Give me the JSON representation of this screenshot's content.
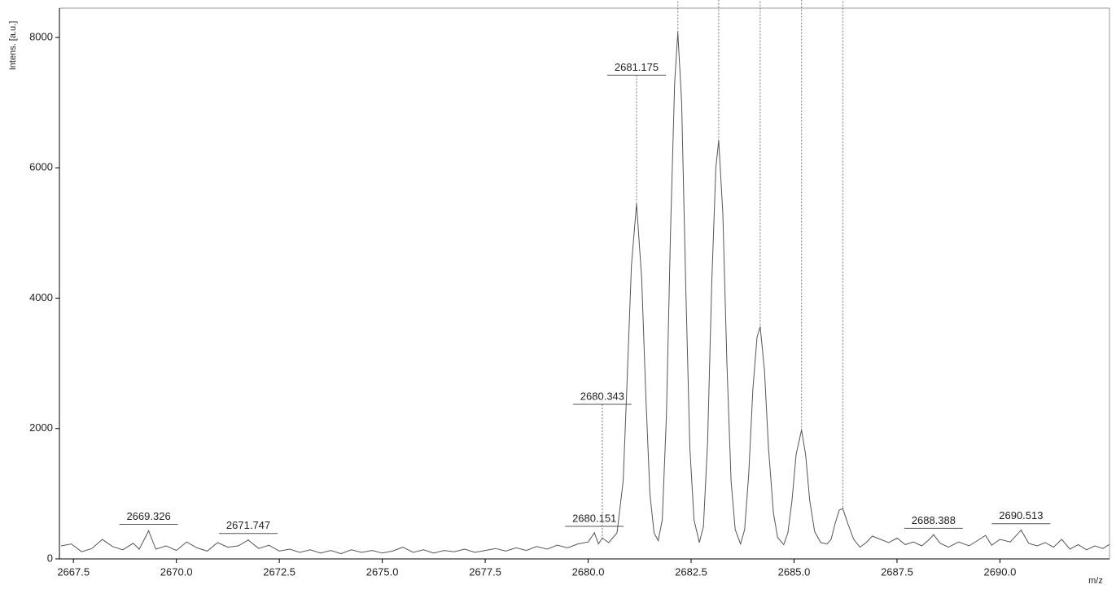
{
  "chart_data": {
    "type": "line",
    "xlabel": "m/z",
    "ylabel": "Intens. [a.u.]",
    "color": "#555555",
    "xlim": [
      2667.16,
      2692.66
    ],
    "ylim": [
      0,
      8450
    ],
    "xticks": [
      2667.5,
      {
        "value": 2670,
        "label": "2670.0"
      },
      2672.5,
      {
        "value": 2675,
        "label": "2675.0"
      },
      2677.5,
      {
        "value": 2680,
        "label": "2680.0"
      },
      2682.5,
      {
        "value": 2685,
        "label": "2685.0"
      },
      2687.5,
      {
        "value": 2690,
        "label": "2690.0"
      }
    ],
    "yticks": [
      0,
      2000,
      4000,
      6000,
      8000
    ],
    "x": [
      2667.2,
      2667.45,
      2667.7,
      2667.95,
      2668.2,
      2668.45,
      2668.7,
      2668.95,
      2669.1,
      2669.326,
      2669.5,
      2669.75,
      2670.0,
      2670.25,
      2670.5,
      2670.75,
      2671.0,
      2671.25,
      2671.5,
      2671.747,
      2672.0,
      2672.25,
      2672.5,
      2672.75,
      2673.0,
      2673.25,
      2673.5,
      2673.75,
      2674.0,
      2674.25,
      2674.5,
      2674.75,
      2675.0,
      2675.25,
      2675.5,
      2675.75,
      2676.0,
      2676.25,
      2676.5,
      2676.75,
      2677.0,
      2677.25,
      2677.5,
      2677.75,
      2678.0,
      2678.25,
      2678.5,
      2678.75,
      2679.0,
      2679.25,
      2679.5,
      2679.75,
      2680.0,
      2680.151,
      2680.25,
      2680.343,
      2680.5,
      2680.7,
      2680.85,
      2680.95,
      2681.05,
      2681.175,
      2681.3,
      2681.4,
      2681.5,
      2681.6,
      2681.7,
      2681.8,
      2681.9,
      2682.0,
      2682.1,
      2682.177,
      2682.27,
      2682.37,
      2682.47,
      2682.57,
      2682.7,
      2682.8,
      2682.9,
      2683.0,
      2683.1,
      2683.169,
      2683.27,
      2683.37,
      2683.47,
      2683.57,
      2683.7,
      2683.8,
      2683.9,
      2684.0,
      2684.1,
      2684.178,
      2684.28,
      2684.38,
      2684.5,
      2684.6,
      2684.75,
      2684.85,
      2684.95,
      2685.05,
      2685.182,
      2685.28,
      2685.38,
      2685.5,
      2685.65,
      2685.8,
      2685.9,
      2686.0,
      2686.1,
      2686.184,
      2686.3,
      2686.45,
      2686.6,
      2686.75,
      2686.9,
      2687.1,
      2687.3,
      2687.5,
      2687.7,
      2687.9,
      2688.1,
      2688.25,
      2688.388,
      2688.55,
      2688.75,
      2689.0,
      2689.25,
      2689.5,
      2689.65,
      2689.8,
      2690.0,
      2690.25,
      2690.513,
      2690.7,
      2690.9,
      2691.1,
      2691.3,
      2691.5,
      2691.7,
      2691.9,
      2692.1,
      2692.3,
      2692.5,
      2692.65
    ],
    "values": [
      200,
      230,
      110,
      160,
      300,
      190,
      140,
      240,
      150,
      430,
      150,
      200,
      130,
      260,
      170,
      120,
      250,
      180,
      200,
      290,
      160,
      210,
      120,
      150,
      100,
      140,
      90,
      130,
      80,
      140,
      100,
      130,
      90,
      120,
      180,
      100,
      140,
      90,
      130,
      110,
      150,
      100,
      130,
      160,
      120,
      170,
      130,
      190,
      150,
      210,
      170,
      230,
      260,
      400,
      230,
      320,
      250,
      400,
      1200,
      2800,
      4500,
      5450,
      4300,
      2500,
      1000,
      400,
      280,
      600,
      2200,
      5000,
      7300,
      8080,
      7000,
      4200,
      1700,
      600,
      250,
      500,
      1800,
      4200,
      6000,
      6420,
      5300,
      3000,
      1200,
      450,
      230,
      450,
      1300,
      2600,
      3400,
      3560,
      2900,
      1700,
      700,
      330,
      220,
      400,
      900,
      1600,
      1980,
      1600,
      900,
      420,
      250,
      230,
      300,
      550,
      750,
      770,
      550,
      300,
      180,
      250,
      350,
      300,
      250,
      320,
      220,
      260,
      200,
      280,
      370,
      240,
      180,
      260,
      200,
      300,
      360,
      210,
      300,
      260,
      440,
      240,
      200,
      250,
      180,
      300,
      150,
      220,
      140,
      200,
      160,
      220
    ],
    "annotations": [
      {
        "x": 2669.326,
        "y": 430
      },
      {
        "x": 2671.747,
        "y": 290
      },
      {
        "x": 2680.151,
        "y": 400
      },
      {
        "x": 2680.343,
        "y": 320
      },
      {
        "x": 2681.175,
        "y": 5450
      },
      {
        "x": 2682.177,
        "y": 8080
      },
      {
        "x": 2683.169,
        "y": 6420
      },
      {
        "x": 2684.178,
        "y": 3560
      },
      {
        "x": 2685.182,
        "y": 1980
      },
      {
        "x": 2686.184,
        "y": 770
      },
      {
        "x": 2688.388,
        "y": 370
      },
      {
        "x": 2690.513,
        "y": 440
      }
    ]
  }
}
